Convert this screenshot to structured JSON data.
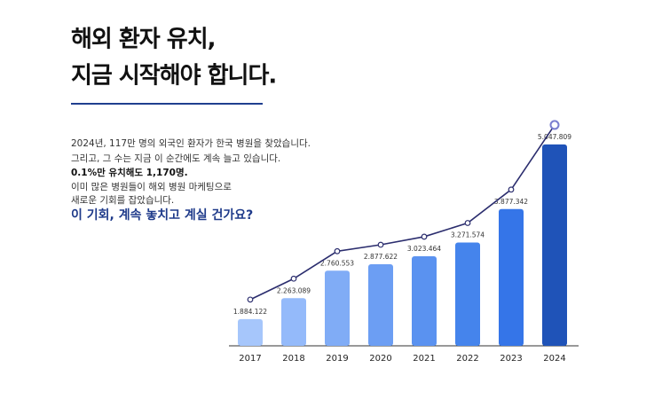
{
  "heading": {
    "lines": [
      "해외 환자 유치,",
      "지금 시작해야 합니다."
    ]
  },
  "body": {
    "lines": [
      "2024년, 117만 명의 외국인 환자가 한국 병원을 찾았습니다.",
      "그리고, 그 수는 지금 이 순간에도 계속 늘고 있습니다.",
      "0.1%만 유치해도 1,170명.",
      "이미 많은 병원들이 해외 병원 마케팅으로",
      "새로운 기회를 잡았습니다."
    ],
    "question": "이 기회, 계속 놓치고 계실 건가요?"
  },
  "chart_data": {
    "type": "bar-line",
    "categories": [
      "2017",
      "2018",
      "2019",
      "2020",
      "2021",
      "2022",
      "2023",
      "2024"
    ],
    "values": [
      1884122,
      2263089,
      2760553,
      2877622,
      3023464,
      3271574,
      3877342,
      5047809
    ],
    "value_labels": [
      "1.884.122",
      "2.263.089",
      "2.760.553",
      "2.877.622",
      "3.023.464",
      "3.271.574",
      "3.877.342",
      "5.047.809"
    ],
    "colors": [
      "#a6c6fb",
      "#94bafa",
      "#80acf6",
      "#6c9ef3",
      "#5a92f0",
      "#4584ec",
      "#3575e8",
      "#1f53b8"
    ],
    "line_color": "#2b2d6e",
    "ylim": [
      1400000,
      5400000
    ]
  }
}
